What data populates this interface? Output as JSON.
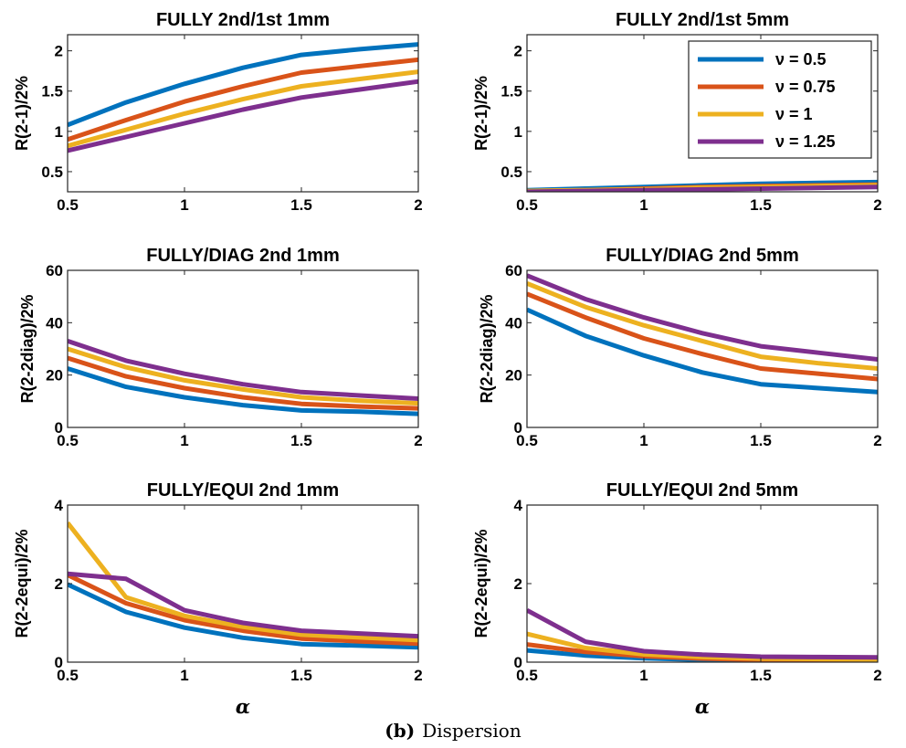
{
  "caption": {
    "tag": "(b)",
    "text": "Dispersion"
  },
  "chart_data": [
    {
      "type": "line",
      "title": "FULLY 2nd/1st 1mm",
      "ylabel": "R(2-1)/2%",
      "xlabel": "",
      "xlim": [
        0.5,
        2
      ],
      "ylim": [
        0.25,
        2.2
      ],
      "xticks": [
        0.5,
        1,
        1.5,
        2
      ],
      "yticks": [
        0.5,
        1,
        1.5,
        2
      ],
      "grid": false,
      "x": [
        0.5,
        0.75,
        1,
        1.25,
        1.5,
        1.75,
        2
      ],
      "series": [
        {
          "name": "ν = 0.5",
          "color": "#0072BD",
          "values": [
            1.08,
            1.36,
            1.59,
            1.79,
            1.95,
            2.02,
            2.08
          ]
        },
        {
          "name": "ν = 0.75",
          "color": "#D95319",
          "values": [
            0.9,
            1.14,
            1.37,
            1.56,
            1.73,
            1.81,
            1.89
          ]
        },
        {
          "name": "ν = 1",
          "color": "#EDB120",
          "values": [
            0.82,
            1.02,
            1.22,
            1.4,
            1.56,
            1.65,
            1.74
          ]
        },
        {
          "name": "ν = 1.25",
          "color": "#7E2F8E",
          "values": [
            0.76,
            0.93,
            1.1,
            1.27,
            1.42,
            1.52,
            1.62
          ]
        }
      ]
    },
    {
      "type": "line",
      "title": "FULLY 2nd/1st 5mm",
      "ylabel": "R(2-1)/2%",
      "xlabel": "",
      "xlim": [
        0.5,
        2
      ],
      "ylim": [
        0.25,
        2.2
      ],
      "xticks": [
        0.5,
        1,
        1.5,
        2
      ],
      "yticks": [
        0.5,
        1,
        1.5,
        2
      ],
      "grid": false,
      "legend": {
        "location": "top-right",
        "entries": [
          "ν = 0.5",
          "ν = 0.75",
          "ν = 1",
          "ν = 1.25"
        ]
      },
      "x": [
        0.5,
        0.75,
        1,
        1.25,
        1.5,
        1.75,
        2
      ],
      "series": [
        {
          "name": "ν = 0.5",
          "color": "#0072BD",
          "values": [
            0.27,
            0.29,
            0.31,
            0.33,
            0.35,
            0.36,
            0.37
          ]
        },
        {
          "name": "ν = 0.75",
          "color": "#D95319",
          "values": [
            0.26,
            0.27,
            0.29,
            0.31,
            0.32,
            0.33,
            0.34
          ]
        },
        {
          "name": "ν = 1",
          "color": "#EDB120",
          "values": [
            0.26,
            0.27,
            0.28,
            0.3,
            0.31,
            0.32,
            0.33
          ]
        },
        {
          "name": "ν = 1.25",
          "color": "#7E2F8E",
          "values": [
            0.25,
            0.26,
            0.27,
            0.28,
            0.29,
            0.3,
            0.31
          ]
        }
      ]
    },
    {
      "type": "line",
      "title": "FULLY/DIAG 2nd 1mm",
      "ylabel": "R(2-2diag)/2%",
      "xlabel": "",
      "xlim": [
        0.5,
        2
      ],
      "ylim": [
        0,
        60
      ],
      "xticks": [
        0.5,
        1,
        1.5,
        2
      ],
      "yticks": [
        0,
        20,
        40,
        60
      ],
      "grid": false,
      "x": [
        0.5,
        0.75,
        1,
        1.25,
        1.5,
        1.75,
        2
      ],
      "series": [
        {
          "name": "ν = 0.5",
          "color": "#0072BD",
          "values": [
            22.5,
            15.5,
            11.5,
            8.5,
            6.5,
            6.0,
            5.2
          ]
        },
        {
          "name": "ν = 0.75",
          "color": "#D95319",
          "values": [
            26.5,
            19.5,
            15.0,
            11.5,
            9.0,
            8.0,
            7.3
          ]
        },
        {
          "name": "ν = 1",
          "color": "#EDB120",
          "values": [
            30.0,
            23.0,
            18.0,
            14.5,
            11.5,
            10.2,
            9.2
          ]
        },
        {
          "name": "ν = 1.25",
          "color": "#7E2F8E",
          "values": [
            33.0,
            25.5,
            20.5,
            16.5,
            13.5,
            12.2,
            11.0
          ]
        }
      ]
    },
    {
      "type": "line",
      "title": "FULLY/DIAG 2nd 5mm",
      "ylabel": "R(2-2diag)/2%",
      "xlabel": "",
      "xlim": [
        0.5,
        2
      ],
      "ylim": [
        0,
        60
      ],
      "xticks": [
        0.5,
        1,
        1.5,
        2
      ],
      "yticks": [
        0,
        20,
        40,
        60
      ],
      "grid": false,
      "x": [
        0.5,
        0.75,
        1,
        1.25,
        1.5,
        1.75,
        2
      ],
      "series": [
        {
          "name": "ν = 0.5",
          "color": "#0072BD",
          "values": [
            45.0,
            35.0,
            27.5,
            21.0,
            16.5,
            15.0,
            13.5
          ]
        },
        {
          "name": "ν = 0.75",
          "color": "#D95319",
          "values": [
            51.0,
            42.0,
            34.0,
            28.0,
            22.5,
            20.5,
            18.5
          ]
        },
        {
          "name": "ν = 1",
          "color": "#EDB120",
          "values": [
            55.0,
            46.0,
            39.0,
            33.0,
            27.0,
            24.5,
            22.5
          ]
        },
        {
          "name": "ν = 1.25",
          "color": "#7E2F8E",
          "values": [
            58.0,
            49.0,
            42.0,
            36.0,
            31.0,
            28.5,
            26.0
          ]
        }
      ]
    },
    {
      "type": "line",
      "title": "FULLY/EQUI 2nd 1mm",
      "ylabel": "R(2-2equi)/2%",
      "xlabel": "α",
      "xlim": [
        0.5,
        2
      ],
      "ylim": [
        0,
        4
      ],
      "xticks": [
        0.5,
        1,
        1.5,
        2
      ],
      "yticks": [
        0,
        2,
        4
      ],
      "grid": false,
      "x": [
        0.5,
        0.75,
        1,
        1.25,
        1.5,
        1.75,
        2
      ],
      "series": [
        {
          "name": "ν = 0.5",
          "color": "#0072BD",
          "values": [
            1.98,
            1.28,
            0.88,
            0.62,
            0.46,
            0.42,
            0.38
          ]
        },
        {
          "name": "ν = 0.75",
          "color": "#D95319",
          "values": [
            2.22,
            1.5,
            1.07,
            0.8,
            0.6,
            0.53,
            0.47
          ]
        },
        {
          "name": "ν = 1",
          "color": "#EDB120",
          "values": [
            3.55,
            1.65,
            1.18,
            0.9,
            0.7,
            0.63,
            0.56
          ]
        },
        {
          "name": "ν = 1.25",
          "color": "#7E2F8E",
          "values": [
            2.25,
            2.12,
            1.32,
            1.0,
            0.8,
            0.73,
            0.66
          ]
        }
      ]
    },
    {
      "type": "line",
      "title": "FULLY/EQUI 2nd 5mm",
      "ylabel": "R(2-2equi)/2%",
      "xlabel": "α",
      "xlim": [
        0.5,
        2
      ],
      "ylim": [
        0,
        4
      ],
      "xticks": [
        0.5,
        1,
        1.5,
        2
      ],
      "yticks": [
        0,
        2,
        4
      ],
      "grid": false,
      "x": [
        0.5,
        0.75,
        1,
        1.25,
        1.5,
        1.75,
        2
      ],
      "series": [
        {
          "name": "ν = 0.5",
          "color": "#0072BD",
          "values": [
            0.3,
            0.17,
            0.1,
            0.06,
            0.04,
            0.03,
            0.03
          ]
        },
        {
          "name": "ν = 0.75",
          "color": "#D95319",
          "values": [
            0.45,
            0.26,
            0.15,
            0.09,
            0.06,
            0.05,
            0.04
          ]
        },
        {
          "name": "ν = 1",
          "color": "#EDB120",
          "values": [
            0.72,
            0.36,
            0.2,
            0.13,
            0.09,
            0.08,
            0.07
          ]
        },
        {
          "name": "ν = 1.25",
          "color": "#7E2F8E",
          "values": [
            1.32,
            0.52,
            0.28,
            0.19,
            0.14,
            0.13,
            0.12
          ]
        }
      ]
    }
  ]
}
